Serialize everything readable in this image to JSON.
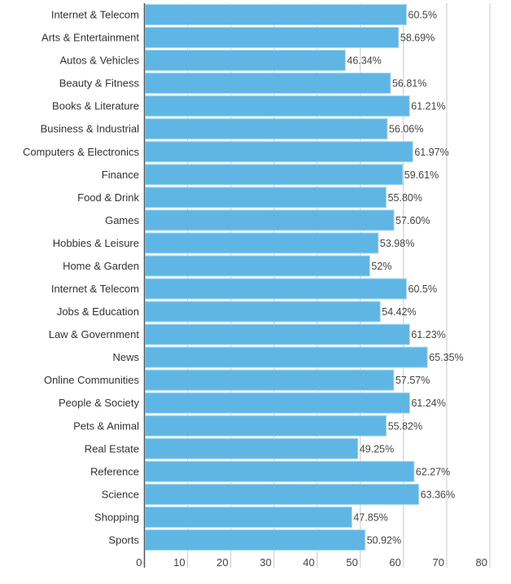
{
  "chart_data": {
    "type": "bar",
    "orientation": "horizontal",
    "title": "",
    "xlabel": "",
    "ylabel": "",
    "xlim": [
      0,
      80
    ],
    "x_ticks": [
      "0",
      "10",
      "20",
      "30",
      "40",
      "50",
      "60",
      "70",
      "80"
    ],
    "grid": true,
    "bar_color": "#5fb6e4",
    "categories": [
      "Internet & Telecom",
      "Arts & Entertainment",
      "Autos & Vehicles",
      "Beauty & Fitness",
      "Books & Literature",
      "Business & Industrial",
      "Computers & Electronics",
      "Finance",
      "Food & Drink",
      "Games",
      "Hobbies & Leisure",
      "Home & Garden",
      "Internet & Telecom",
      "Jobs & Education",
      "Law & Government",
      "News",
      "Online Communities",
      "People & Society",
      "Pets & Animal",
      "Real Estate",
      "Reference",
      "Science",
      "Shopping",
      "Sports"
    ],
    "values": [
      60.5,
      58.69,
      46.34,
      56.81,
      61.21,
      56.06,
      61.97,
      59.61,
      55.8,
      57.6,
      53.98,
      52,
      60.5,
      54.42,
      61.23,
      65.35,
      57.57,
      61.24,
      55.82,
      49.25,
      62.27,
      63.36,
      47.85,
      50.92
    ],
    "data_labels": [
      "60.5%",
      "58.69%",
      "46.34%",
      "56.81%",
      "61.21%",
      "56.06%",
      "61.97%",
      "59.61%",
      "55.80%",
      "57.60%",
      "53.98%",
      "52%",
      "60.5%",
      "54.42%",
      "61.23%",
      "65.35%",
      "57.57%",
      "61.24%",
      "55.82%",
      "49.25%",
      "62.27%",
      "63.36%",
      "47.85%",
      "50.92%"
    ]
  }
}
